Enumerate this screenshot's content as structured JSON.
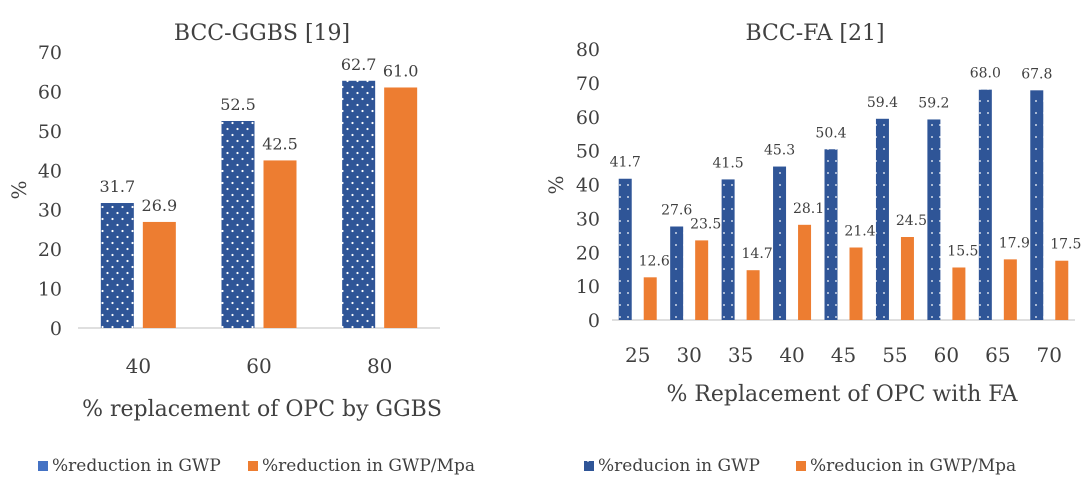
{
  "colors": {
    "series1": "#2F5597",
    "series2": "#ED7D31",
    "dots": "#ffffff",
    "axis": "#bfbfbf",
    "text": "#404040"
  },
  "chart_data": [
    {
      "type": "bar",
      "title": "BCC-GGBS [19]",
      "xlabel": "% replacement of OPC by GGBS",
      "ylabel": "%",
      "ylim": [
        0,
        70
      ],
      "yticks": [
        0,
        10,
        20,
        30,
        40,
        50,
        60,
        70
      ],
      "categories": [
        "40",
        "60",
        "80"
      ],
      "series": [
        {
          "name": "%reduction in GWP",
          "values": [
            31.7,
            52.5,
            62.7
          ],
          "labels": [
            "31.7",
            "52.5",
            "62.7"
          ],
          "pattern": "dots"
        },
        {
          "name": "%reduction in GWP/Mpa",
          "values": [
            26.9,
            42.5,
            61.0
          ],
          "labels": [
            "26.9",
            "42.5",
            "61.0"
          ],
          "pattern": "solid"
        }
      ],
      "legend": "bottom",
      "grid": false
    },
    {
      "type": "bar",
      "title": "BCC-FA [21]",
      "xlabel": "% Replacement of OPC with FA",
      "ylabel": "%",
      "ylim": [
        0,
        80
      ],
      "yticks": [
        0,
        10,
        20,
        30,
        40,
        50,
        60,
        70,
        80
      ],
      "categories": [
        "25",
        "30",
        "35",
        "40",
        "45",
        "55",
        "60",
        "65",
        "70"
      ],
      "series": [
        {
          "name": "%reducion in GWP",
          "values": [
            41.7,
            27.6,
            41.5,
            45.3,
            50.4,
            59.4,
            59.2,
            68.0,
            67.8
          ],
          "labels": [
            "41.7",
            "27.6",
            "41.5",
            "45.3",
            "50.4",
            "59.4",
            "59.2",
            "68.0",
            "67.8"
          ],
          "pattern": "dots"
        },
        {
          "name": "%reducion in GWP/Mpa",
          "values": [
            12.6,
            23.5,
            14.7,
            28.1,
            21.4,
            24.5,
            15.5,
            17.9,
            17.5
          ],
          "labels": [
            "12.6",
            "23.5",
            "14.7",
            "28.1",
            "21.4",
            "24.5",
            "15.5",
            "17.9",
            "17.5"
          ],
          "pattern": "solid"
        }
      ],
      "legend": "bottom",
      "grid": false
    }
  ]
}
